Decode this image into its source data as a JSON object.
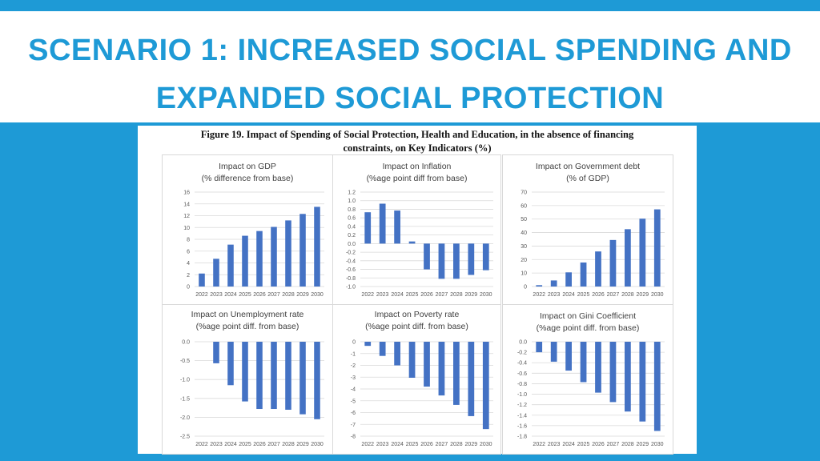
{
  "slide": {
    "title_line1": "SCENARIO 1: INCREASED SOCIAL SPENDING AND",
    "title_line2": "EXPANDED SOCIAL PROTECTION",
    "figure_caption_line1": "Figure 19. Impact of Spending of Social Protection, Health and Education, in the absence of financing",
    "figure_caption_line2": "constraints, on Key Indicators (%)",
    "accent_color": "#1e9ad6",
    "bar_color": "#4472c4"
  },
  "chart_data": [
    {
      "type": "bar",
      "title_line1": "Impact on GDP",
      "title_line2": "(% difference from base)",
      "categories": [
        "2022",
        "2023",
        "2024",
        "2025",
        "2026",
        "2027",
        "2028",
        "2029",
        "2030"
      ],
      "values": [
        2.2,
        4.7,
        7.1,
        8.6,
        9.4,
        10.1,
        11.2,
        12.3,
        13.5
      ],
      "ylim": [
        0,
        16
      ],
      "yticks": [
        "0",
        "2",
        "4",
        "6",
        "8",
        "10",
        "12",
        "14",
        "16"
      ]
    },
    {
      "type": "bar",
      "title_line1": "Impact on Inflation",
      "title_line2": "(%age point diff from base)",
      "categories": [
        "2022",
        "2023",
        "2024",
        "2025",
        "2026",
        "2027",
        "2028",
        "2029",
        "2030"
      ],
      "values": [
        0.73,
        0.93,
        0.77,
        0.05,
        -0.6,
        -0.82,
        -0.82,
        -0.73,
        -0.62
      ],
      "ylim": [
        -1.0,
        1.2
      ],
      "yticks": [
        "-1.0",
        "-0.8",
        "-0.6",
        "-0.4",
        "-0.2",
        "0.0",
        "0.2",
        "0.4",
        "0.6",
        "0.8",
        "1.0",
        "1.2"
      ]
    },
    {
      "type": "bar",
      "title_line1": "Impact on Government debt",
      "title_line2": "(% of GDP)",
      "categories": [
        "2022",
        "2023",
        "2024",
        "2025",
        "2026",
        "2027",
        "2028",
        "2029",
        "2030"
      ],
      "values": [
        1,
        4.5,
        10.5,
        17.8,
        26,
        34.5,
        42.5,
        50.3,
        57.2
      ],
      "ylim": [
        0,
        70
      ],
      "yticks": [
        "0",
        "10",
        "20",
        "30",
        "40",
        "50",
        "60",
        "70"
      ]
    },
    {
      "type": "bar",
      "title_line1": "Impact on Unemployment rate",
      "title_line2": "(%age point diff. from base)",
      "categories": [
        "2022",
        "2023",
        "2024",
        "2025",
        "2026",
        "2027",
        "2028",
        "2029",
        "2030"
      ],
      "values": [
        0,
        -0.57,
        -1.15,
        -1.58,
        -1.78,
        -1.78,
        -1.8,
        -1.92,
        -2.05
      ],
      "ylim": [
        -2.5,
        0
      ],
      "yticks": [
        "-2.5",
        "-2.0",
        "-1.5",
        "-1.0",
        "-0.5",
        "0.0"
      ]
    },
    {
      "type": "bar",
      "title_line1": "Impact on Poverty rate",
      "title_line2": "(%age point diff. from base)",
      "categories": [
        "2022",
        "2023",
        "2024",
        "2025",
        "2026",
        "2027",
        "2028",
        "2029",
        "2030"
      ],
      "values": [
        -0.35,
        -1.2,
        -2.0,
        -3.05,
        -3.8,
        -4.55,
        -5.35,
        -6.3,
        -7.4
      ],
      "ylim": [
        -8,
        0
      ],
      "yticks": [
        "-8",
        "-7",
        "-6",
        "-5",
        "-4",
        "-3",
        "-2",
        "-1",
        "0"
      ]
    },
    {
      "type": "bar",
      "title_line1": "Impact on Gini Coefficient",
      "title_line2": "(%age point diff. from base)",
      "categories": [
        "2022",
        "2023",
        "2024",
        "2025",
        "2026",
        "2027",
        "2028",
        "2029",
        "2030"
      ],
      "values": [
        -0.2,
        -0.38,
        -0.55,
        -0.77,
        -0.97,
        -1.15,
        -1.33,
        -1.52,
        -1.7
      ],
      "ylim": [
        -1.8,
        0
      ],
      "yticks": [
        "-1.8",
        "-1.6",
        "-1.4",
        "-1.2",
        "-1.0",
        "-0.8",
        "-0.6",
        "-0.4",
        "-0.2",
        "0.0"
      ]
    }
  ]
}
